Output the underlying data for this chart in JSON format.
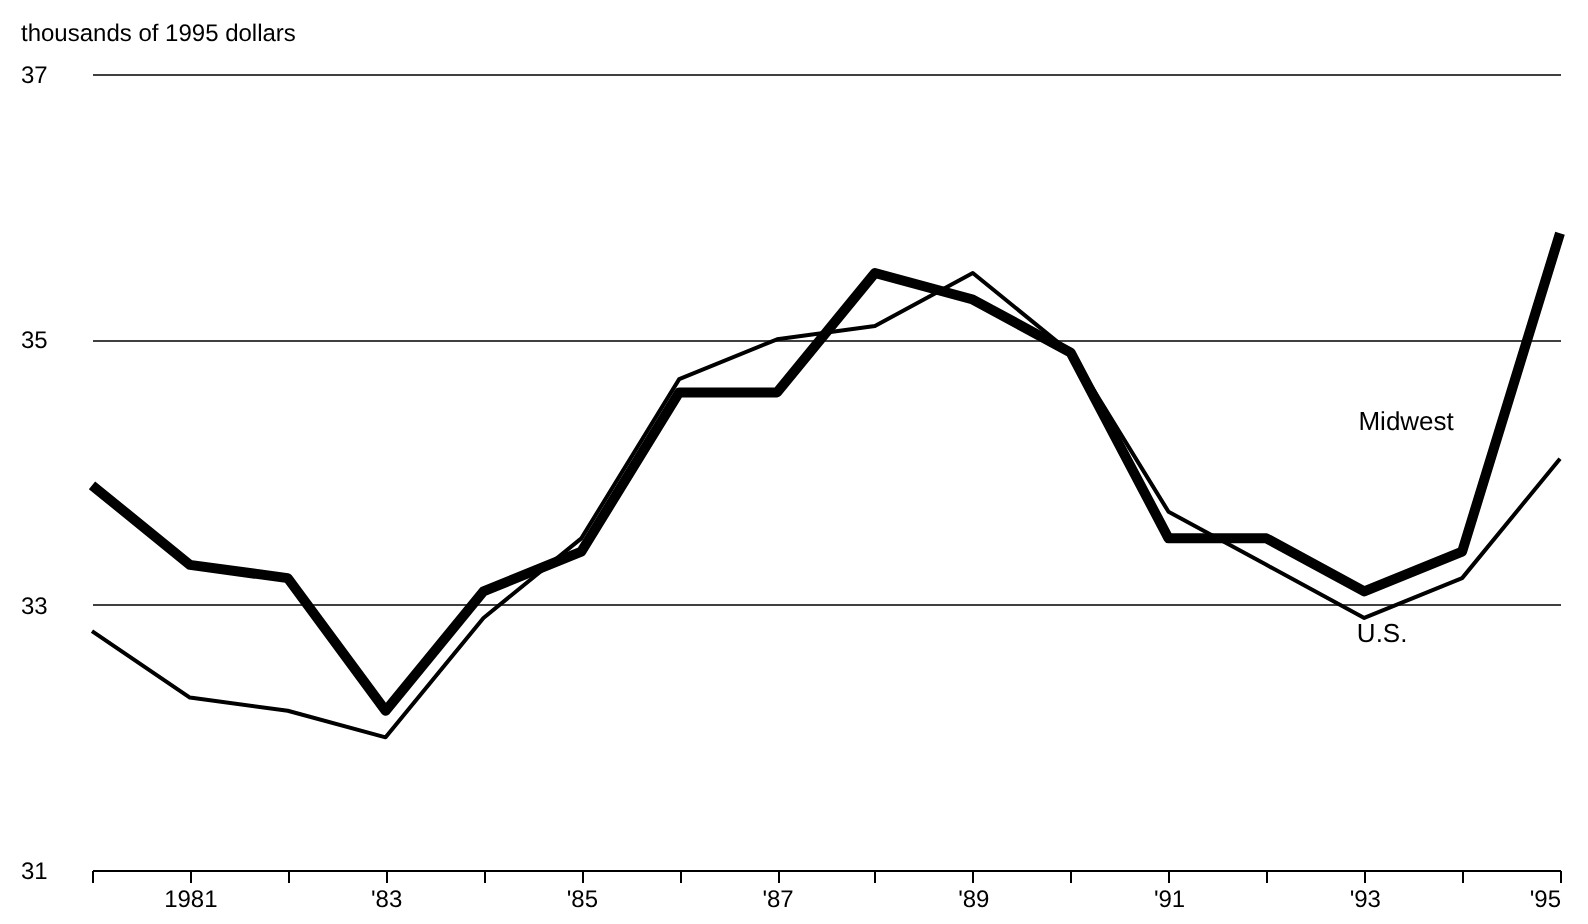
{
  "chart_data": {
    "type": "line",
    "ylabel": "thousands of 1995 dollars",
    "x": [
      1980,
      1981,
      1982,
      1983,
      1984,
      1985,
      1986,
      1987,
      1988,
      1989,
      1990,
      1991,
      1992,
      1993,
      1994,
      1995
    ],
    "series": [
      {
        "name": "Midwest",
        "color": "#000000",
        "values": [
          33.9,
          33.3,
          33.2,
          32.2,
          33.1,
          33.4,
          34.6,
          34.6,
          35.5,
          35.3,
          34.9,
          33.5,
          33.5,
          33.1,
          33.4,
          35.8
        ]
      },
      {
        "name": "U.S.",
        "color": "#000000",
        "values": [
          32.8,
          32.3,
          32.2,
          32.0,
          32.9,
          33.5,
          34.7,
          35.0,
          35.1,
          35.5,
          34.9,
          33.7,
          33.3,
          32.9,
          33.2,
          34.1
        ]
      }
    ],
    "xlim": [
      1980,
      1995
    ],
    "xticks": [
      {
        "value": 1980,
        "label": null
      },
      {
        "value": 1981,
        "label": "1981"
      },
      {
        "value": 1982,
        "label": null
      },
      {
        "value": 1983,
        "label": "'83"
      },
      {
        "value": 1984,
        "label": null
      },
      {
        "value": 1985,
        "label": "'85"
      },
      {
        "value": 1986,
        "label": null
      },
      {
        "value": 1987,
        "label": "'87"
      },
      {
        "value": 1988,
        "label": null
      },
      {
        "value": 1989,
        "label": "'89"
      },
      {
        "value": 1990,
        "label": null
      },
      {
        "value": 1991,
        "label": "'91"
      },
      {
        "value": 1992,
        "label": null
      },
      {
        "value": 1993,
        "label": "'93"
      },
      {
        "value": 1994,
        "label": null
      },
      {
        "value": 1995,
        "label": "'95"
      }
    ],
    "ylim": [
      31,
      37
    ],
    "yticks": [
      31,
      33,
      35,
      37
    ],
    "grid": "y",
    "marker": "none",
    "line_style": "solid"
  }
}
